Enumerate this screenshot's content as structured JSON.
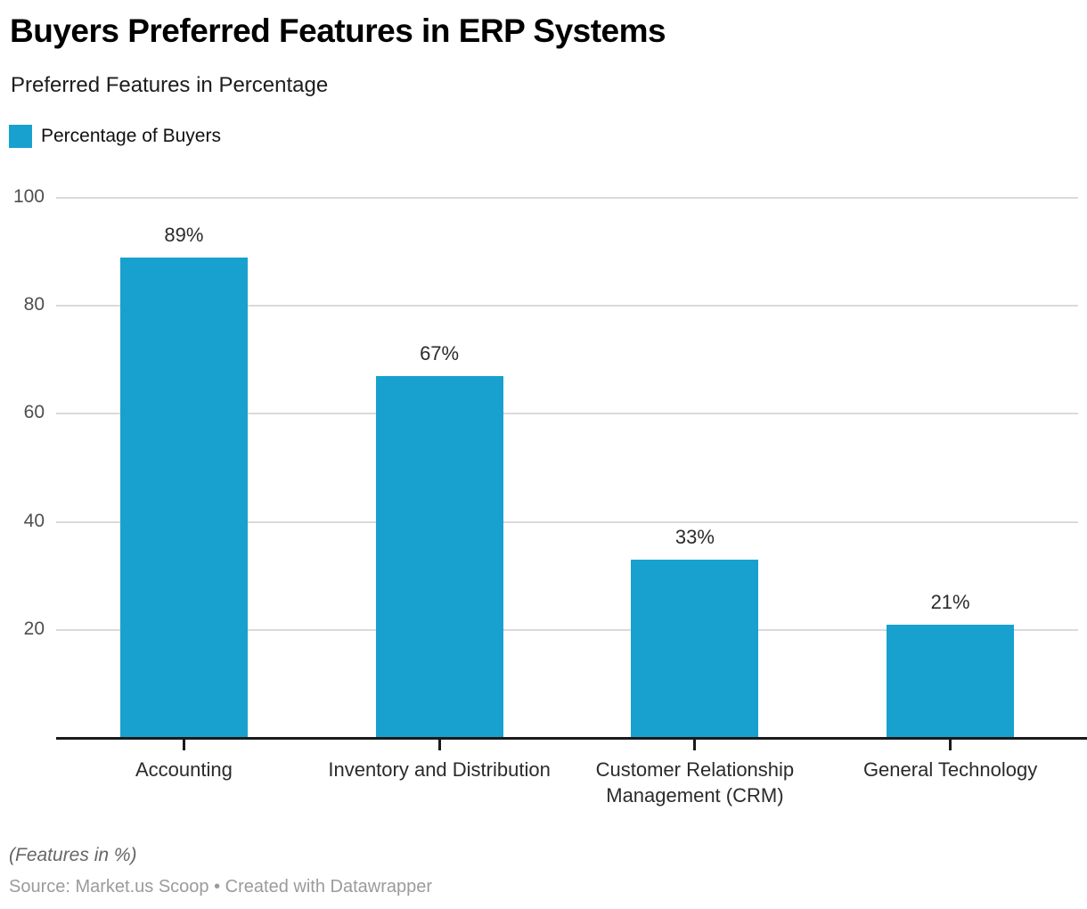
{
  "header": {
    "title": "Buyers Preferred Features in ERP Systems",
    "subtitle": "Preferred Features in Percentage",
    "legend": {
      "label": "Percentage of Buyers"
    }
  },
  "footer": {
    "notes": "(Features in %)",
    "source": "Source: Market.us Scoop • Created with Datawrapper"
  },
  "colors": {
    "bar": "#18a1ce",
    "gridline": "#dadada",
    "axis_line": "#1a1a1a",
    "y_tick_text": "#4f4f4f",
    "value_label_text": "#2b2b2b",
    "x_label_text": "#2b2b2b",
    "title_text": "#000000",
    "subtitle_text": "#1d1d1d",
    "notes_text": "#666666",
    "source_text": "#9b9b9b"
  },
  "chart_data": {
    "type": "bar",
    "title": "Buyers Preferred Features in ERP Systems",
    "subtitle": "Preferred Features in Percentage",
    "legend_entries": [
      "Percentage of Buyers"
    ],
    "legend_position": "top-left",
    "categories": [
      "Accounting",
      "Inventory and Distribution",
      "Customer Relationship Management (CRM)",
      "General Technology"
    ],
    "series": [
      {
        "name": "Percentage of Buyers",
        "values": [
          89,
          67,
          33,
          21
        ]
      }
    ],
    "value_labels": [
      "89%",
      "67%",
      "33%",
      "21%"
    ],
    "xlabel": "",
    "ylabel": "",
    "y_ticks": [
      20,
      40,
      60,
      80,
      100
    ],
    "ylim": [
      0,
      100
    ],
    "grid": true,
    "notes": "(Features in %)",
    "source": "Source: Market.us Scoop • Created with Datawrapper"
  }
}
